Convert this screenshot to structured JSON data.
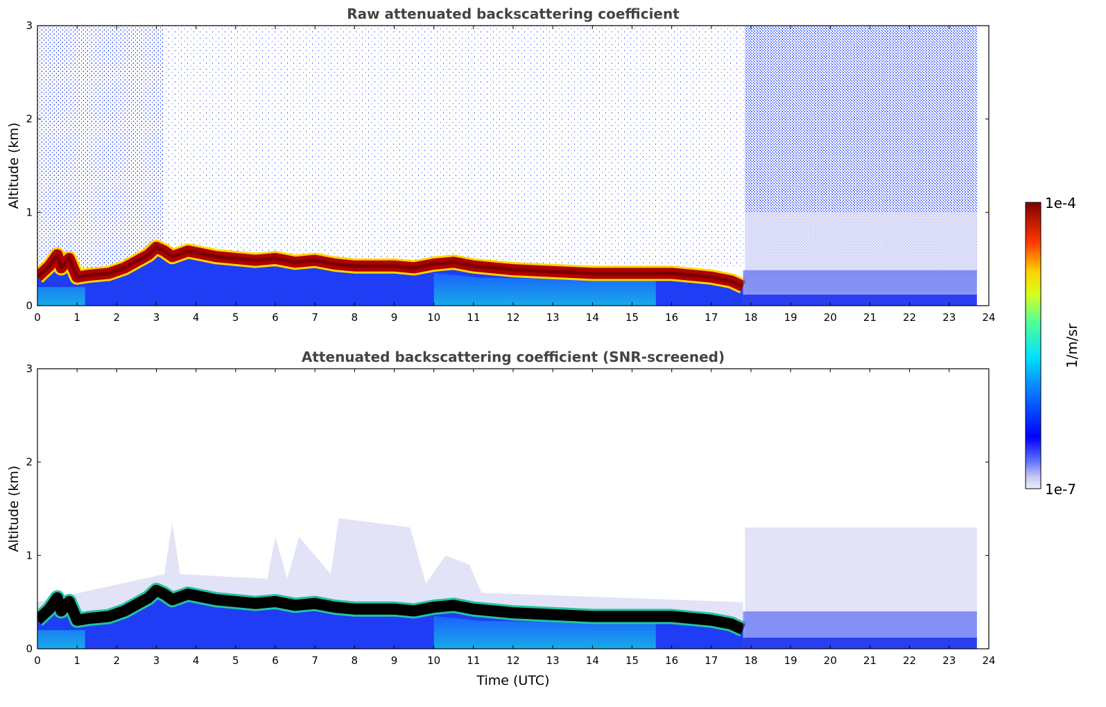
{
  "chart_data": [
    {
      "type": "heatmap",
      "title": "Raw attenuated backscattering coefficient",
      "xlabel": "",
      "ylabel": "Altitude (km)",
      "xlim": [
        0,
        24
      ],
      "ylim": [
        0,
        3
      ],
      "xticks": [
        "0",
        "1",
        "2",
        "3",
        "4",
        "5",
        "6",
        "7",
        "8",
        "9",
        "10",
        "11",
        "12",
        "13",
        "14",
        "15",
        "16",
        "17",
        "18",
        "19",
        "20",
        "21",
        "22",
        "23",
        "24"
      ],
      "yticks": [
        "0",
        "1",
        "2",
        "3"
      ],
      "layer_top_km": {
        "x": [
          0,
          0.3,
          0.5,
          0.6,
          0.8,
          1.0,
          1.3,
          1.8,
          2.2,
          2.8,
          3.0,
          3.2,
          3.4,
          3.8,
          4.5,
          5.5,
          6.0,
          6.5,
          7.0,
          7.5,
          8.0,
          8.5,
          9.0,
          9.5,
          10.0,
          10.5,
          11.0,
          12.0,
          13.0,
          14.0,
          15.0,
          16.0,
          17.0,
          17.5,
          17.8
        ],
        "y": [
          0.38,
          0.5,
          0.62,
          0.48,
          0.58,
          0.38,
          0.4,
          0.42,
          0.48,
          0.62,
          0.7,
          0.66,
          0.6,
          0.66,
          0.6,
          0.56,
          0.58,
          0.54,
          0.56,
          0.52,
          0.5,
          0.5,
          0.5,
          0.48,
          0.52,
          0.54,
          0.5,
          0.46,
          0.44,
          0.42,
          0.42,
          0.42,
          0.38,
          0.34,
          0.28
        ]
      },
      "colorbar": {
        "label": "1/m/sr",
        "min_label": "1e-7",
        "max_label": "1e-4",
        "colormap": "jet"
      }
    },
    {
      "type": "heatmap",
      "title": "Attenuated backscattering coefficient (SNR-screened)",
      "xlabel": "Time (UTC)",
      "ylabel": "Altitude (km)",
      "xlim": [
        0,
        24
      ],
      "ylim": [
        0,
        3
      ],
      "xticks": [
        "0",
        "1",
        "2",
        "3",
        "4",
        "5",
        "6",
        "7",
        "8",
        "9",
        "10",
        "11",
        "12",
        "13",
        "14",
        "15",
        "16",
        "17",
        "18",
        "19",
        "20",
        "21",
        "22",
        "23",
        "24"
      ],
      "yticks": [
        "0",
        "1",
        "2",
        "3"
      ],
      "screened_region_top_km": {
        "x": [
          17.85,
          23.7
        ],
        "y": [
          1.3,
          1.3
        ]
      }
    }
  ],
  "colors": {
    "title": "#444444",
    "low_signal": "#e3e3f7",
    "noise_blue": "#1a3cff",
    "mid_blue": "#2a55ff",
    "cyan": "#1ab8e8",
    "layer_red": "#b00000",
    "layer_black": "#000000"
  }
}
